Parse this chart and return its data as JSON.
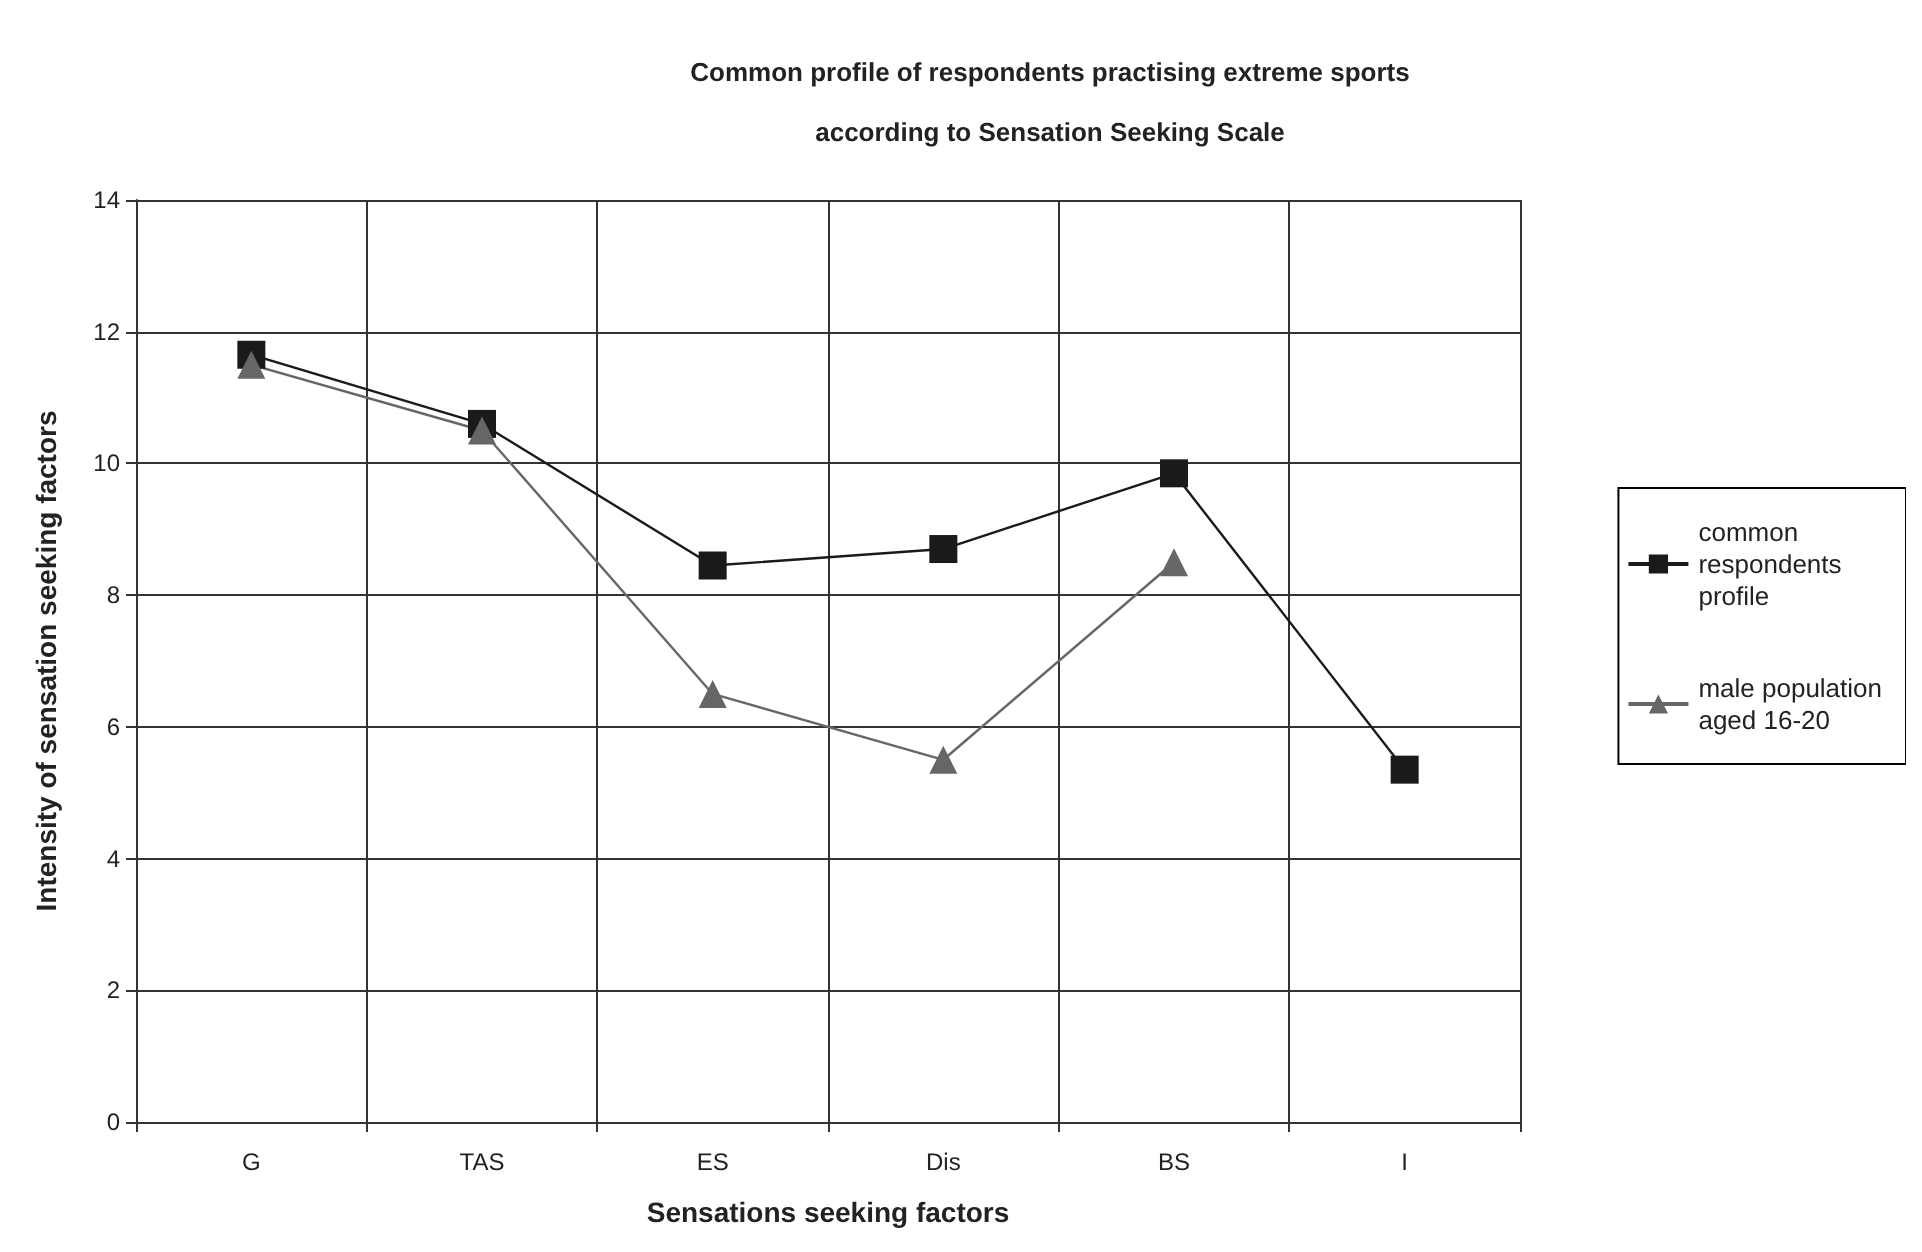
{
  "chart_data": {
    "type": "line",
    "title": "Common profile of respondents practising extreme sports\naccording to Sensation Seeking Scale",
    "xlabel": "Sensations seeking factors",
    "ylabel": "Intensity of sensation seeking factors",
    "categories": [
      "G",
      "TAS",
      "ES",
      "Dis",
      "BS",
      "I"
    ],
    "series": [
      {
        "name": "common\nrespondents\nprofile",
        "color": "#1a1a1a",
        "marker": "square",
        "values": [
          11.65,
          10.6,
          8.45,
          8.7,
          9.85,
          5.35
        ]
      },
      {
        "name": "male population\naged 16-20",
        "color": "#666666",
        "marker": "triangle",
        "values": [
          11.5,
          10.5,
          6.5,
          5.5,
          8.5,
          null
        ]
      }
    ],
    "ylim": [
      0,
      14
    ],
    "yticks": [
      0,
      2,
      4,
      6,
      8,
      10,
      12,
      14
    ],
    "grid": true,
    "legend": "right"
  }
}
